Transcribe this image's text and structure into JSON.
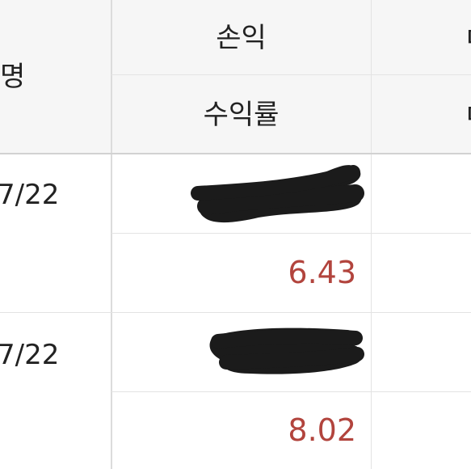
{
  "table": {
    "header": {
      "name_col_label": "명",
      "pnl_label": "손익",
      "return_rate_label": "수익률",
      "right_col_top_glyph": "ㅁ",
      "right_col_bottom_glyph": "ㅁ"
    },
    "rows": [
      {
        "date": "7/22",
        "pnl": "",
        "pnl_redacted": true,
        "return_rate": "6.43"
      },
      {
        "date": "7/22",
        "pnl": "",
        "pnl_redacted": true,
        "return_rate": "8.02"
      }
    ]
  },
  "colors": {
    "header_background": "#f6f6f6",
    "positive_value": "#b2443d",
    "grid_line": "#e3e3e3",
    "redaction": "#1b1b1b"
  }
}
